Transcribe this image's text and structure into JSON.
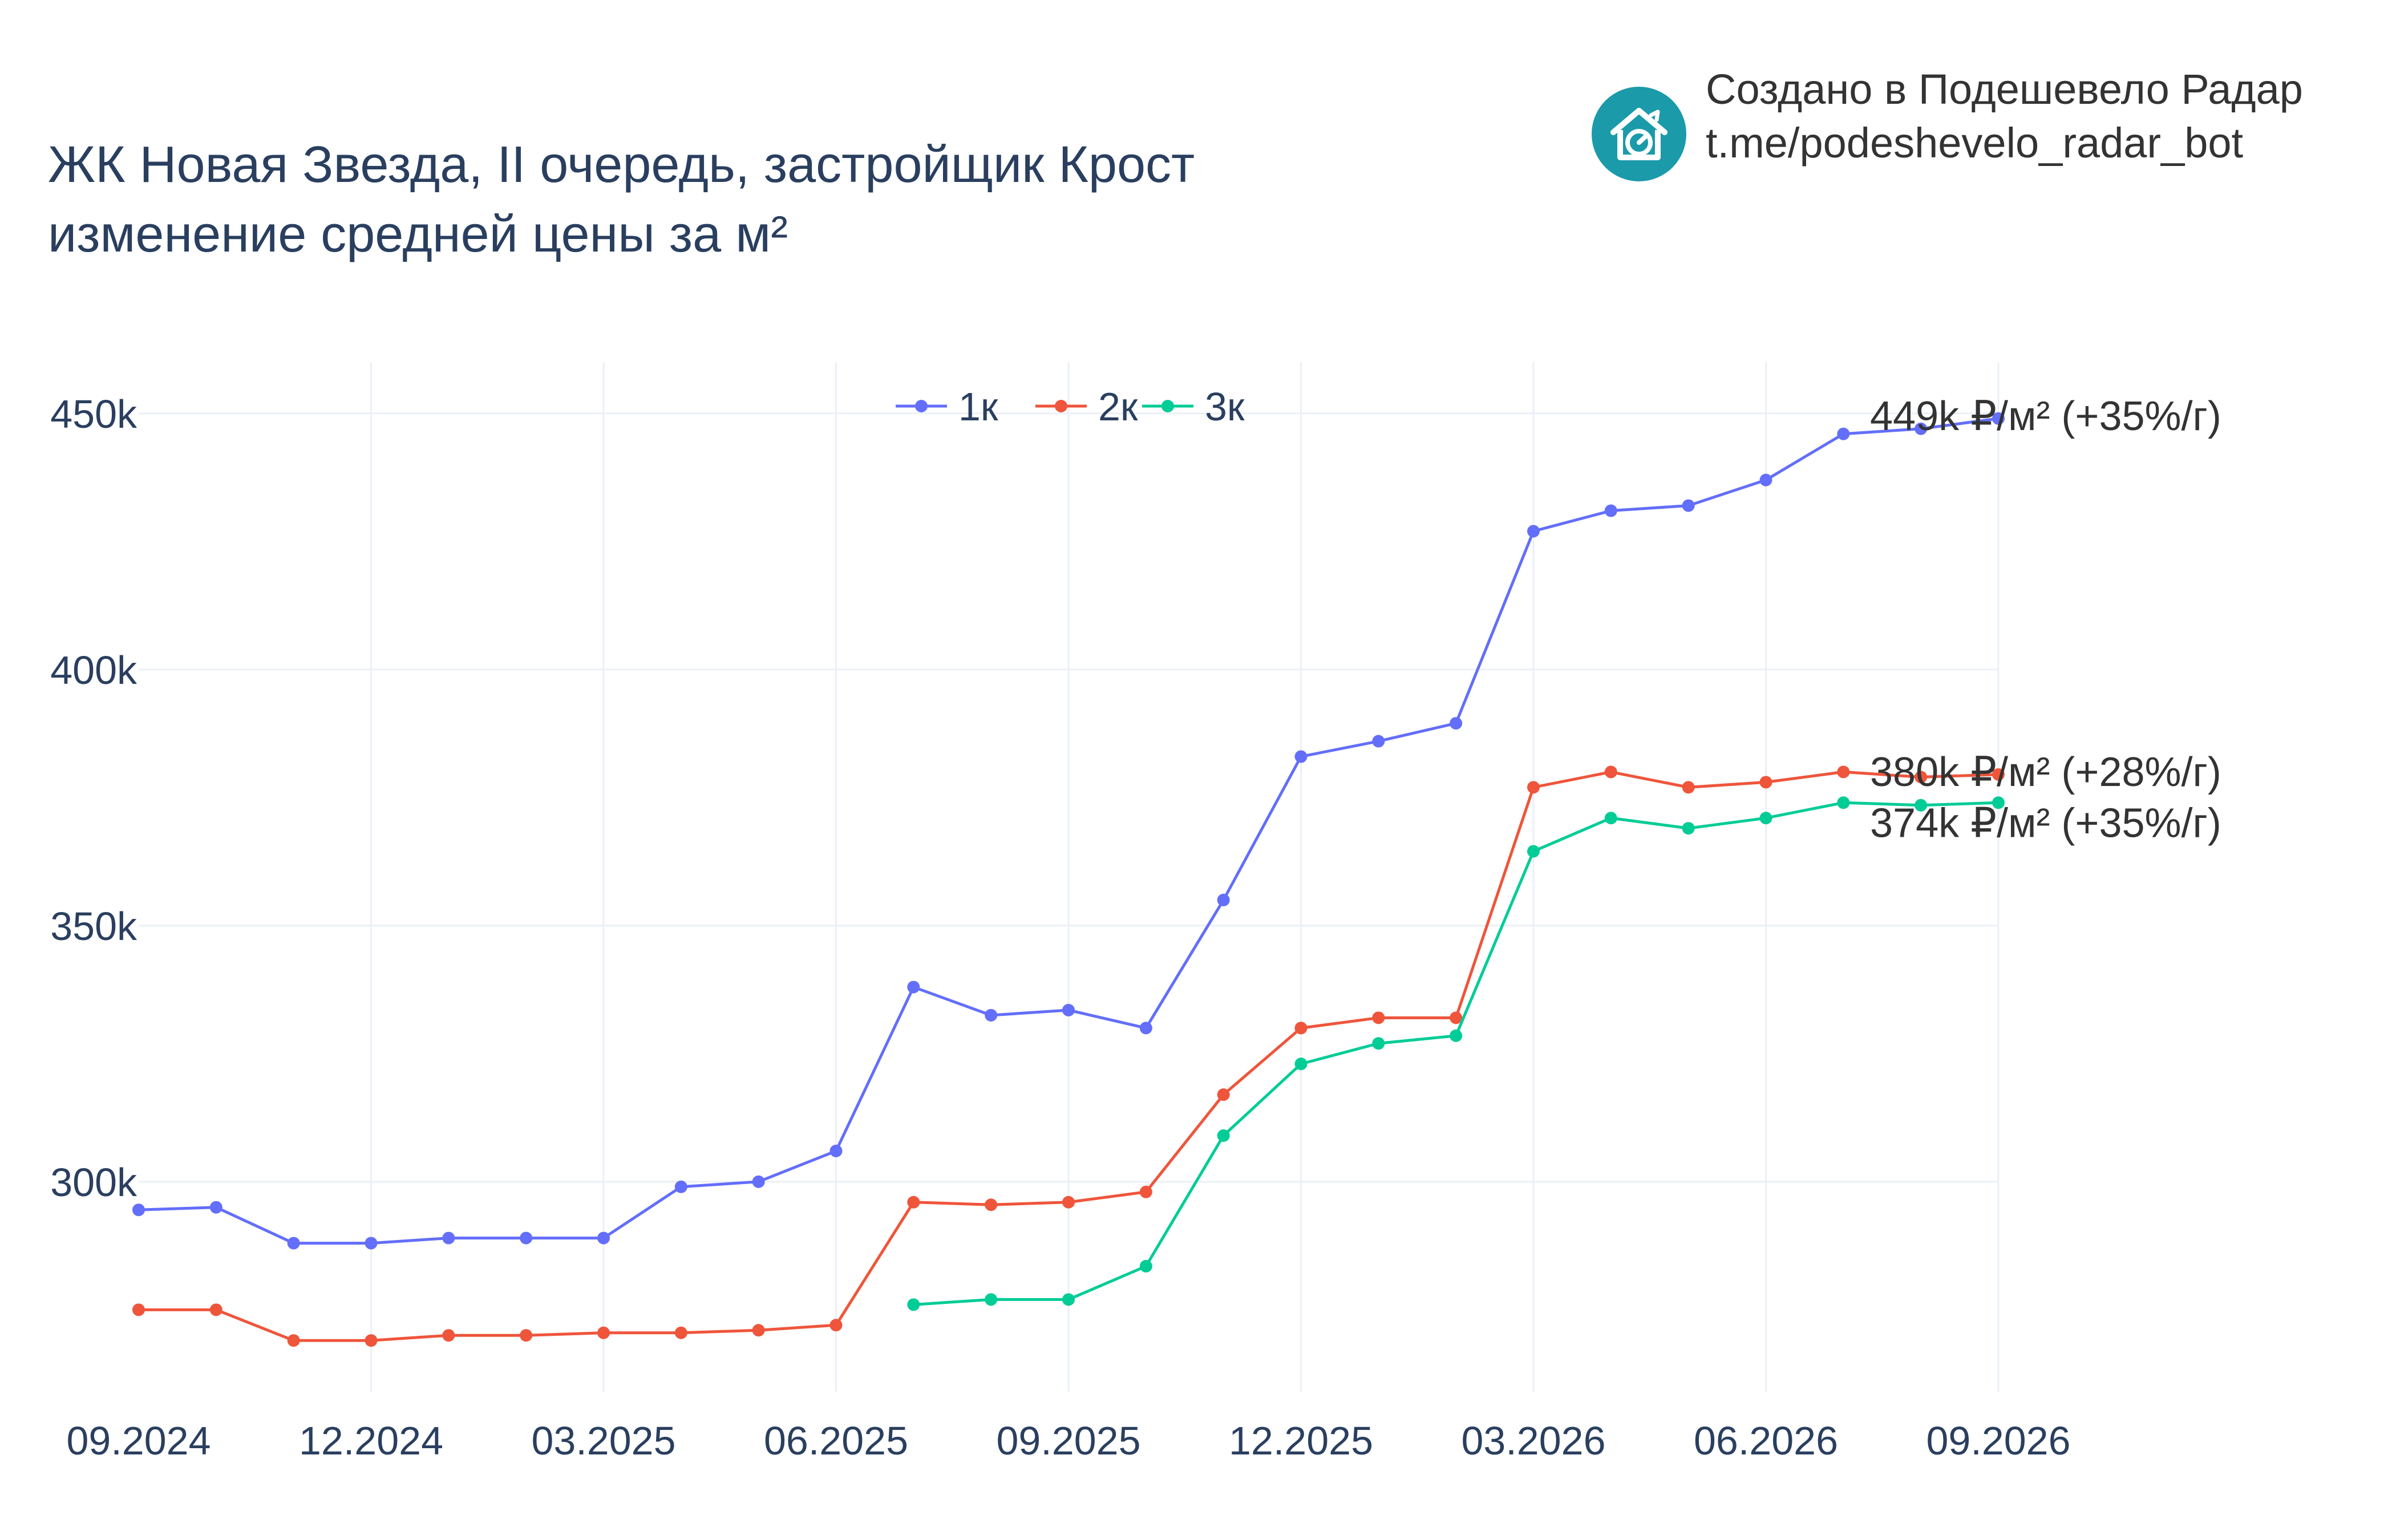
{
  "header": {
    "title_line1": "ЖК Новая Звезда, II очередь, застройщик Крост",
    "title_line2": "изменение средней цены за м²"
  },
  "brand": {
    "line1": "Создано в Подешевело Радар",
    "line2": "t.me/podeshevelo_radar_bot",
    "logo_icon": "house-clock-icon",
    "logo_color": "#1b9aaa"
  },
  "chart_data": {
    "type": "line",
    "x": [
      "09.2024",
      "10.2024",
      "11.2024",
      "12.2024",
      "01.2025",
      "02.2025",
      "03.2025",
      "04.2025",
      "05.2025",
      "06.2025",
      "07.2025",
      "08.2025",
      "09.2025",
      "10.2025",
      "11.2025",
      "12.2025",
      "01.2026",
      "02.2026",
      "03.2026",
      "04.2026",
      "05.2026",
      "06.2026",
      "07.2026",
      "08.2026",
      "09.2026"
    ],
    "x_ticks": [
      "09.2024",
      "12.2024",
      "03.2025",
      "06.2025",
      "09.2025",
      "12.2025",
      "03.2026",
      "06.2026",
      "09.2026"
    ],
    "y_ticks": [
      300000,
      350000,
      400000,
      450000
    ],
    "y_tick_labels": [
      "300k",
      "350k",
      "400k",
      "450k"
    ],
    "ylim": [
      259000,
      460000
    ],
    "grid": true,
    "legend_position": "top-center",
    "series": [
      {
        "name": "1к",
        "color": "#636efa",
        "values": [
          294500,
          295000,
          288000,
          288000,
          289000,
          289000,
          289000,
          299000,
          300000,
          306000,
          338000,
          332500,
          333500,
          330000,
          355000,
          383000,
          386000,
          389500,
          427000,
          431000,
          432000,
          437000,
          446000,
          447000,
          449000
        ],
        "end_label": "449k ₽/м² (+35%/г)"
      },
      {
        "name": "2к",
        "color": "#ef553b",
        "values": [
          275000,
          275000,
          269000,
          269000,
          270000,
          270000,
          270500,
          270500,
          271000,
          272000,
          296000,
          295500,
          296000,
          298000,
          317000,
          330000,
          332000,
          332000,
          377000,
          380000,
          377000,
          378000,
          380000,
          379000,
          379500
        ],
        "end_label": "380k ₽/м² (+28%/г)"
      },
      {
        "name": "3к",
        "color": "#00cc96",
        "values": [
          null,
          null,
          null,
          null,
          null,
          null,
          null,
          null,
          null,
          null,
          276000,
          277000,
          277000,
          283500,
          309000,
          323000,
          327000,
          328500,
          364500,
          371000,
          369000,
          371000,
          374000,
          373500,
          374000
        ],
        "end_label": "374k ₽/м² (+35%/г)"
      }
    ]
  }
}
